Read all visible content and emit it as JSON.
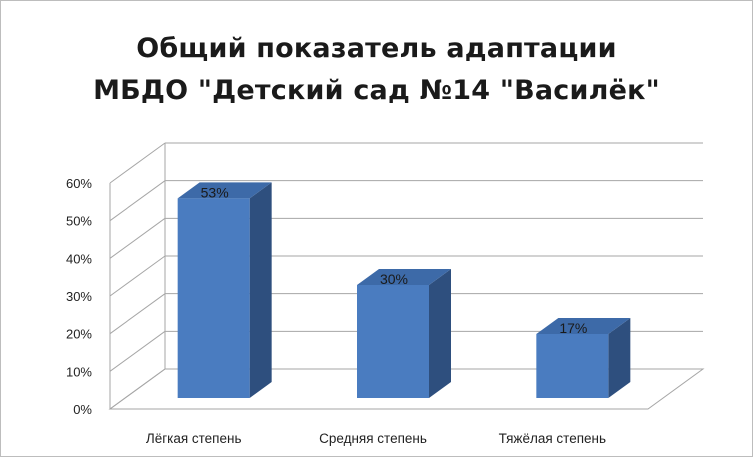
{
  "chart_data": {
    "type": "bar",
    "title_line1": "Общий показатель адаптации",
    "title_line2": "МБДО \"Детский сад №14 \"Василёк\"",
    "categories": [
      "Лёгкая степень",
      "Средняя степень",
      "Тяжёлая степень"
    ],
    "values": [
      53,
      30,
      17
    ],
    "value_labels": [
      "53%",
      "30%",
      "17%"
    ],
    "yticks": [
      "0%",
      "10%",
      "20%",
      "30%",
      "40%",
      "50%",
      "60%"
    ],
    "ylim": [
      0,
      60
    ],
    "grid": true,
    "three_d": true,
    "legend": "none",
    "colors": {
      "bar_front": "#4a7cc0",
      "bar_side": "#2e4f7e",
      "bar_top": "#3d6aa8",
      "grid": "#a6a6a6"
    }
  }
}
